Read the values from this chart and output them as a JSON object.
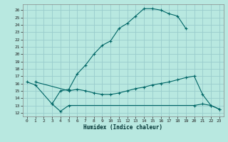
{
  "xlabel": "Humidex (Indice chaleur)",
  "bg_color": "#b8e8e0",
  "grid_color": "#99cccc",
  "line_color": "#006666",
  "xlim": [
    -0.5,
    23.5
  ],
  "ylim": [
    11.5,
    26.8
  ],
  "xticks": [
    0,
    1,
    2,
    3,
    4,
    5,
    6,
    7,
    8,
    9,
    10,
    11,
    12,
    13,
    14,
    15,
    16,
    17,
    18,
    19,
    20,
    21,
    22,
    23
  ],
  "yticks": [
    12,
    13,
    14,
    15,
    16,
    17,
    18,
    19,
    20,
    21,
    22,
    23,
    24,
    25,
    26
  ],
  "curve1_x": [
    0,
    1,
    3,
    4,
    5,
    6,
    7,
    8,
    9,
    10,
    11,
    12,
    13,
    14,
    15,
    16,
    17,
    18,
    19
  ],
  "curve1_y": [
    16.2,
    15.8,
    13.2,
    15.0,
    15.2,
    17.3,
    18.5,
    20.0,
    21.2,
    21.8,
    23.5,
    24.2,
    25.2,
    26.2,
    26.2,
    26.0,
    25.5,
    25.2,
    23.5
  ],
  "curve2_x": [
    1,
    5,
    6,
    7,
    8,
    9,
    10,
    11,
    12,
    13,
    14,
    15,
    16,
    17,
    18,
    19,
    20,
    21,
    22,
    23
  ],
  "curve2_y": [
    16.2,
    15.0,
    15.2,
    15.0,
    14.7,
    14.5,
    14.5,
    14.7,
    15.0,
    15.3,
    15.5,
    15.8,
    16.0,
    16.2,
    16.5,
    16.8,
    17.0,
    14.5,
    13.0,
    12.5
  ],
  "curve3_x": [
    3,
    4,
    5,
    20,
    21,
    22,
    23
  ],
  "curve3_y": [
    13.2,
    12.2,
    13.0,
    13.0,
    13.2,
    13.0,
    12.5
  ]
}
